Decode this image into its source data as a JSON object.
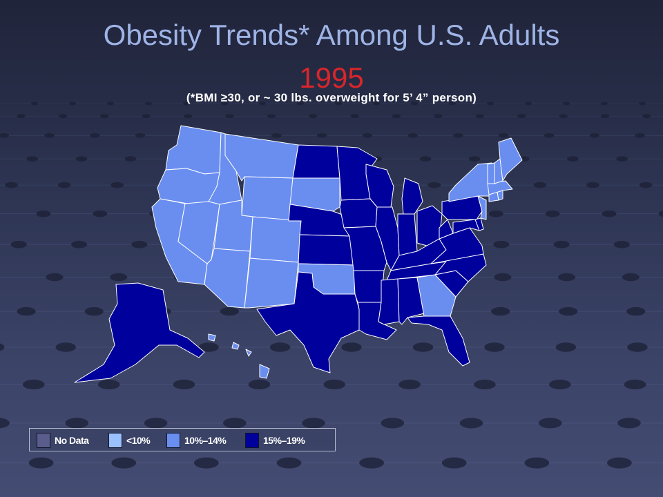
{
  "slide": {
    "title": "Obesity Trends* Among U.S. Adults",
    "year": "1995",
    "subtitle": "(*BMI ≥30, or ~ 30 lbs. overweight for 5’ 4” person)"
  },
  "colors": {
    "no_data": "#5a5d8c",
    "lt10": "#9bc0ff",
    "10to14": "#6a8ef0",
    "15to19": "#00009c",
    "border": "#ffffff"
  },
  "legend": [
    {
      "label": "No Data",
      "category": "no_data"
    },
    {
      "label": "<10%",
      "category": "lt10"
    },
    {
      "label": "10%–14%",
      "category": "10to14"
    },
    {
      "label": "15%–19%",
      "category": "15to19"
    }
  ],
  "map_data": {
    "type": "choropleth",
    "categories": [
      "No Data",
      "<10%",
      "10%–14%",
      "15%–19%"
    ],
    "regions": [
      {
        "id": "WA",
        "category": "10to14"
      },
      {
        "id": "OR",
        "category": "10to14"
      },
      {
        "id": "CA",
        "category": "10to14"
      },
      {
        "id": "ID",
        "category": "10to14"
      },
      {
        "id": "NV",
        "category": "10to14"
      },
      {
        "id": "MT",
        "category": "10to14"
      },
      {
        "id": "WY",
        "category": "10to14"
      },
      {
        "id": "UT",
        "category": "10to14"
      },
      {
        "id": "AZ",
        "category": "10to14"
      },
      {
        "id": "CO",
        "category": "10to14"
      },
      {
        "id": "NM",
        "category": "10to14"
      },
      {
        "id": "ND",
        "category": "15to19"
      },
      {
        "id": "SD",
        "category": "10to14"
      },
      {
        "id": "NE",
        "category": "15to19"
      },
      {
        "id": "KS",
        "category": "15to19"
      },
      {
        "id": "OK",
        "category": "10to14"
      },
      {
        "id": "TX",
        "category": "15to19"
      },
      {
        "id": "MN",
        "category": "15to19"
      },
      {
        "id": "IA",
        "category": "15to19"
      },
      {
        "id": "MO",
        "category": "15to19"
      },
      {
        "id": "AR",
        "category": "15to19"
      },
      {
        "id": "LA",
        "category": "15to19"
      },
      {
        "id": "WI",
        "category": "15to19"
      },
      {
        "id": "IL",
        "category": "15to19"
      },
      {
        "id": "MI",
        "category": "15to19"
      },
      {
        "id": "IN",
        "category": "15to19"
      },
      {
        "id": "OH",
        "category": "15to19"
      },
      {
        "id": "KY",
        "category": "15to19"
      },
      {
        "id": "TN",
        "category": "15to19"
      },
      {
        "id": "MS",
        "category": "15to19"
      },
      {
        "id": "AL",
        "category": "15to19"
      },
      {
        "id": "GA",
        "category": "10to14"
      },
      {
        "id": "FL",
        "category": "15to19"
      },
      {
        "id": "SC",
        "category": "15to19"
      },
      {
        "id": "NC",
        "category": "15to19"
      },
      {
        "id": "VA",
        "category": "15to19"
      },
      {
        "id": "WV",
        "category": "15to19"
      },
      {
        "id": "MD",
        "category": "15to19"
      },
      {
        "id": "DE",
        "category": "15to19"
      },
      {
        "id": "PA",
        "category": "15to19"
      },
      {
        "id": "NJ",
        "category": "10to14"
      },
      {
        "id": "NY",
        "category": "10to14"
      },
      {
        "id": "CT",
        "category": "10to14"
      },
      {
        "id": "RI",
        "category": "10to14"
      },
      {
        "id": "MA",
        "category": "10to14"
      },
      {
        "id": "VT",
        "category": "10to14"
      },
      {
        "id": "NH",
        "category": "10to14"
      },
      {
        "id": "ME",
        "category": "10to14"
      },
      {
        "id": "AK",
        "category": "15to19"
      },
      {
        "id": "HI",
        "category": "10to14"
      }
    ]
  }
}
